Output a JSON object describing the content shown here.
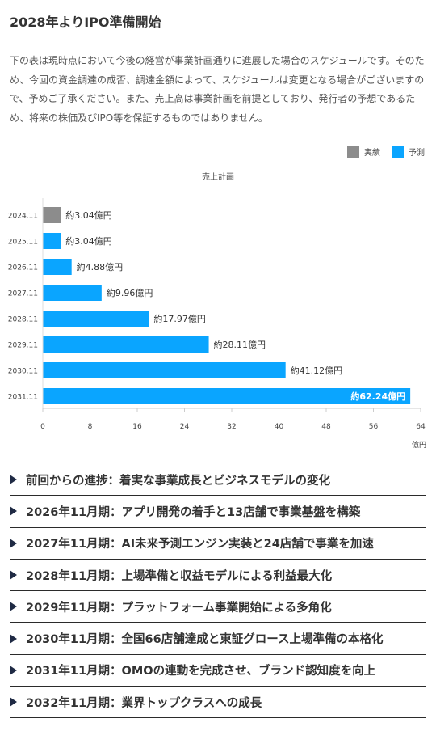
{
  "header": {
    "title": "2028年よりIPO準備開始",
    "description": "下の表は現時点において今後の経営が事業計画通りに進展した場合のスケジュールです。そのため、今回の資金調達の成否、調達金額によって、スケジュールは変更となる場合がございますので、予めご了承ください。また、売上高は事業計画を前提としており、発行者の予想であるため、将来の株価及びIPO等を保証するものではありません。"
  },
  "legend": {
    "actual_label": "実績",
    "forecast_label": "予測"
  },
  "colors": {
    "actual": "#8c8c8c",
    "forecast": "#0aa5ff",
    "marker": "#1f2a44"
  },
  "chart_data": {
    "type": "bar",
    "orientation": "horizontal",
    "title": "売上計画",
    "categories": [
      "2024.11",
      "2025.11",
      "2026.11",
      "2027.11",
      "2028.11",
      "2029.11",
      "2030.11",
      "2031.11"
    ],
    "values": [
      3.04,
      3.04,
      4.88,
      9.96,
      17.97,
      28.11,
      41.12,
      62.24
    ],
    "value_labels": [
      "約3.04億円",
      "約3.04億円",
      "約4.88億円",
      "約9.96億円",
      "約17.97億円",
      "約28.11億円",
      "約41.12億円",
      "約62.24億円"
    ],
    "kinds": [
      "actual",
      "forecast",
      "forecast",
      "forecast",
      "forecast",
      "forecast",
      "forecast",
      "forecast"
    ],
    "xlim": [
      0,
      64
    ],
    "xticks": [
      0,
      8,
      16,
      24,
      32,
      40,
      48,
      56,
      64
    ],
    "xunit": "億円",
    "grid": false,
    "legend_position": "top-right"
  },
  "accordion": {
    "items": [
      {
        "label": "前回からの進捗：着実な事業成長とビジネスモデルの変化"
      },
      {
        "label": "2026年11月期：アプリ開発の着手と13店舗で事業基盤を構築"
      },
      {
        "label": "2027年11月期：AI未来予測エンジン実装と24店舗で事業を加速"
      },
      {
        "label": "2028年11月期：上場準備と収益モデルによる利益最大化"
      },
      {
        "label": "2029年11月期：プラットフォーム事業開始による多角化"
      },
      {
        "label": "2030年11月期：全国66店舗達成と東証グロース上場準備の本格化"
      },
      {
        "label": "2031年11月期：OMOの連動を完成させ、ブランド認知度を向上"
      },
      {
        "label": "2032年11月期：業界トップクラスへの成長"
      }
    ]
  }
}
